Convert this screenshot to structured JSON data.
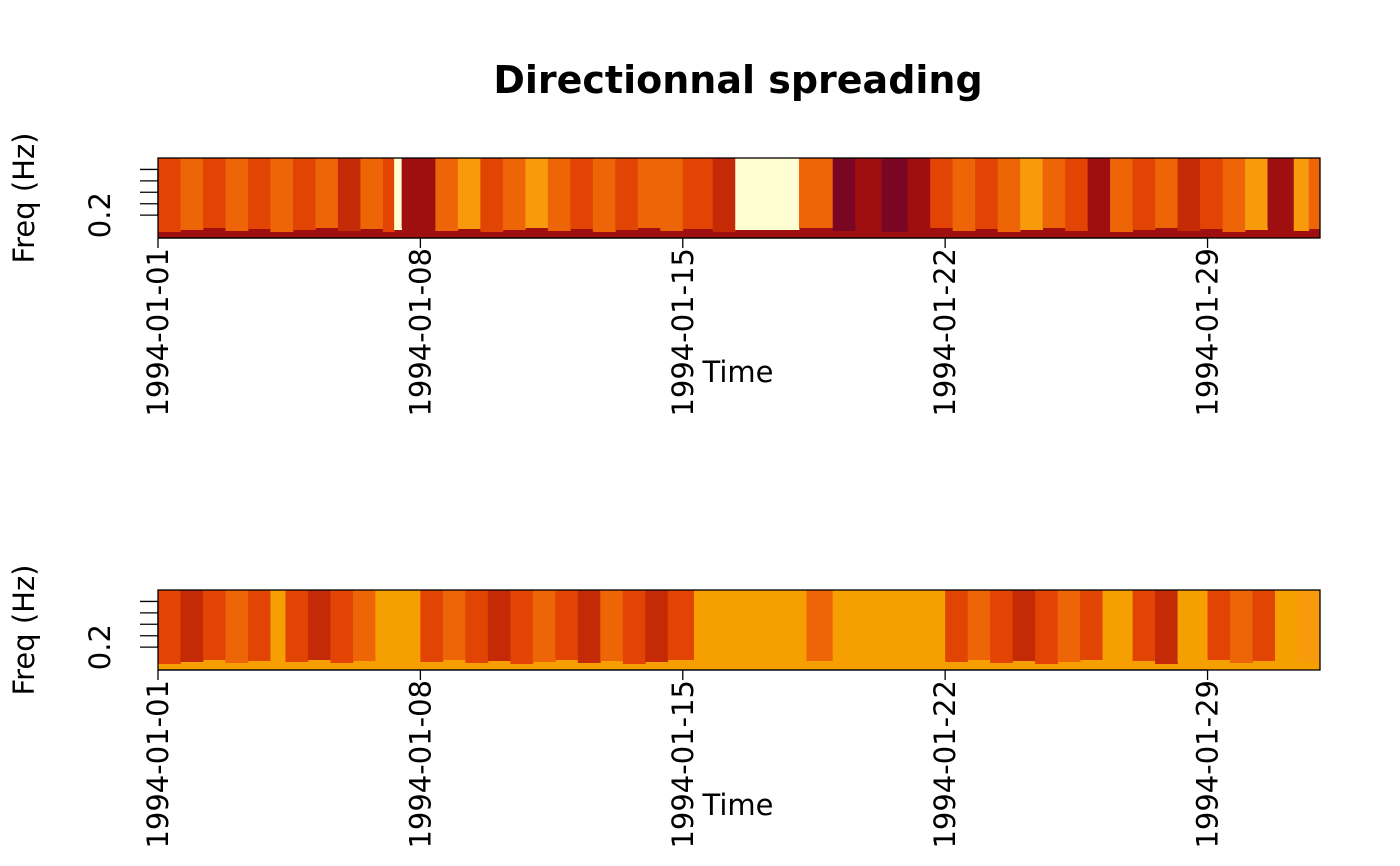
{
  "chart_data": [
    {
      "type": "heatmap",
      "title": "Directionnal spreading",
      "xlabel": "Time",
      "ylabel": "Freq (Hz)",
      "x_ticks": [
        "1994-01-01",
        "1994-01-08",
        "1994-01-15",
        "1994-01-22",
        "1994-01-29"
      ],
      "x_tick_days": [
        0,
        7,
        14,
        21,
        28
      ],
      "x_range_days": [
        0,
        31
      ],
      "y_ticks": [
        "0.2"
      ],
      "y_tick_values": [
        0.2
      ],
      "y_range": [
        0.1,
        0.45
      ],
      "palette": [
        "#7B0623",
        "#A00F10",
        "#C42A05",
        "#E24403",
        "#EE6508",
        "#F79A0B",
        "#FFFDD1"
      ],
      "columns": [
        [
          0.0,
          0.6,
          3
        ],
        [
          0.6,
          1.2,
          4
        ],
        [
          1.2,
          1.8,
          3
        ],
        [
          1.8,
          2.4,
          4
        ],
        [
          2.4,
          3.0,
          3
        ],
        [
          3.0,
          3.6,
          4
        ],
        [
          3.6,
          4.2,
          3
        ],
        [
          4.2,
          4.8,
          4
        ],
        [
          4.8,
          5.4,
          2
        ],
        [
          5.4,
          6.0,
          4
        ],
        [
          6.0,
          6.3,
          3
        ],
        [
          6.3,
          6.5,
          6
        ],
        [
          6.5,
          7.4,
          1
        ],
        [
          7.4,
          8.0,
          4
        ],
        [
          8.0,
          8.6,
          5
        ],
        [
          8.6,
          9.2,
          3
        ],
        [
          9.2,
          9.8,
          4
        ],
        [
          9.8,
          10.4,
          5
        ],
        [
          10.4,
          11.0,
          4
        ],
        [
          11.0,
          11.6,
          3
        ],
        [
          11.6,
          12.2,
          4
        ],
        [
          12.2,
          12.8,
          3
        ],
        [
          12.8,
          13.4,
          4
        ],
        [
          13.4,
          14.0,
          4
        ],
        [
          14.0,
          14.8,
          3
        ],
        [
          14.8,
          15.4,
          2
        ],
        [
          15.4,
          17.1,
          6
        ],
        [
          17.1,
          18.0,
          4
        ],
        [
          18.0,
          18.6,
          0
        ],
        [
          18.6,
          19.3,
          1
        ],
        [
          19.3,
          20.0,
          0
        ],
        [
          20.0,
          20.6,
          1
        ],
        [
          20.6,
          21.2,
          3
        ],
        [
          21.2,
          21.8,
          4
        ],
        [
          21.8,
          22.4,
          3
        ],
        [
          22.4,
          23.0,
          4
        ],
        [
          23.0,
          23.6,
          5
        ],
        [
          23.6,
          24.2,
          4
        ],
        [
          24.2,
          24.8,
          3
        ],
        [
          24.8,
          25.4,
          1
        ],
        [
          25.4,
          26.0,
          4
        ],
        [
          26.0,
          26.6,
          3
        ],
        [
          26.6,
          27.2,
          4
        ],
        [
          27.2,
          27.8,
          2
        ],
        [
          27.8,
          28.4,
          3
        ],
        [
          28.4,
          29.0,
          4
        ],
        [
          29.0,
          29.6,
          5
        ],
        [
          29.6,
          30.3,
          1
        ],
        [
          30.3,
          30.7,
          5
        ],
        [
          30.7,
          31.0,
          4
        ]
      ]
    },
    {
      "type": "heatmap",
      "title": "",
      "xlabel": "Time",
      "ylabel": "Freq (Hz)",
      "x_ticks": [
        "1994-01-01",
        "1994-01-08",
        "1994-01-15",
        "1994-01-22",
        "1994-01-29"
      ],
      "x_tick_days": [
        0,
        7,
        14,
        21,
        28
      ],
      "x_range_days": [
        0,
        31
      ],
      "y_ticks": [
        "0.2"
      ],
      "y_tick_values": [
        0.2
      ],
      "y_range": [
        0.1,
        0.45
      ],
      "palette": [
        "#C42A05",
        "#E24403",
        "#EE6508",
        "#F5A000",
        "#F79A0B"
      ],
      "columns": [
        [
          0.0,
          0.6,
          1
        ],
        [
          0.6,
          1.2,
          0
        ],
        [
          1.2,
          1.8,
          1
        ],
        [
          1.8,
          2.4,
          2
        ],
        [
          2.4,
          3.0,
          1
        ],
        [
          3.0,
          3.4,
          3
        ],
        [
          3.4,
          4.0,
          1
        ],
        [
          4.0,
          4.6,
          0
        ],
        [
          4.6,
          5.2,
          1
        ],
        [
          5.2,
          5.8,
          2
        ],
        [
          5.8,
          7.0,
          3
        ],
        [
          7.0,
          7.6,
          1
        ],
        [
          7.6,
          8.2,
          2
        ],
        [
          8.2,
          8.8,
          1
        ],
        [
          8.8,
          9.4,
          0
        ],
        [
          9.4,
          10.0,
          1
        ],
        [
          10.0,
          10.6,
          2
        ],
        [
          10.6,
          11.2,
          1
        ],
        [
          11.2,
          11.8,
          0
        ],
        [
          11.8,
          12.4,
          2
        ],
        [
          12.4,
          13.0,
          1
        ],
        [
          13.0,
          13.6,
          0
        ],
        [
          13.6,
          14.3,
          1
        ],
        [
          14.3,
          17.3,
          3
        ],
        [
          17.3,
          18.0,
          2
        ],
        [
          18.0,
          21.0,
          3
        ],
        [
          21.0,
          21.6,
          1
        ],
        [
          21.6,
          22.2,
          2
        ],
        [
          22.2,
          22.8,
          1
        ],
        [
          22.8,
          23.4,
          0
        ],
        [
          23.4,
          24.0,
          1
        ],
        [
          24.0,
          24.6,
          2
        ],
        [
          24.6,
          25.2,
          1
        ],
        [
          25.2,
          26.0,
          3
        ],
        [
          26.0,
          26.6,
          1
        ],
        [
          26.6,
          27.2,
          0
        ],
        [
          27.2,
          28.0,
          3
        ],
        [
          28.0,
          28.6,
          1
        ],
        [
          28.6,
          29.2,
          2
        ],
        [
          29.2,
          29.8,
          1
        ],
        [
          29.8,
          30.4,
          3
        ],
        [
          30.4,
          31.0,
          4
        ]
      ]
    }
  ]
}
